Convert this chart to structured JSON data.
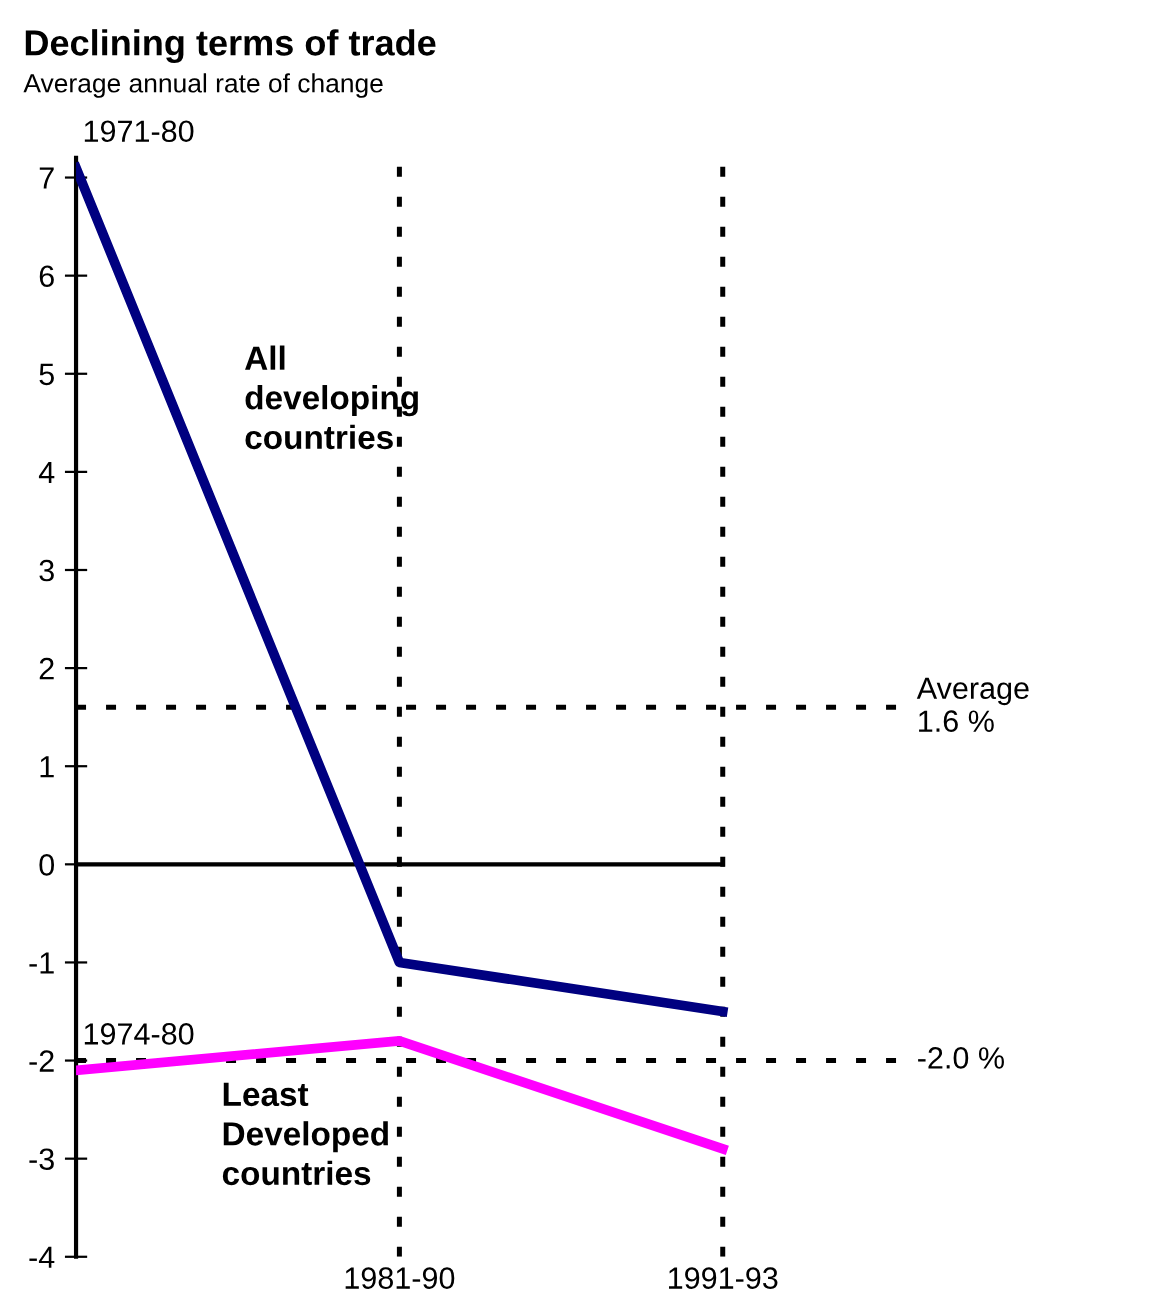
{
  "chart_data": {
    "type": "line",
    "title": "Declining terms of trade",
    "subtitle": "Average annual rate of change",
    "categories": [
      null,
      "1981-90",
      "1991-93"
    ],
    "series": [
      {
        "name": "All\ndeveloping\ncountries",
        "color": "#000080",
        "values": [
          7.1,
          -1.0,
          -1.5
        ]
      },
      {
        "name": "Least\nDeveloped\ncountries",
        "color": "#ff00ff",
        "values": [
          -2.1,
          -1.8,
          -2.9
        ]
      }
    ],
    "ylim": [
      -4,
      7.2
    ],
    "yticks": [
      -4,
      -3,
      -2,
      -1,
      0,
      1,
      2,
      3,
      4,
      5,
      6,
      7
    ],
    "ref_lines": [
      {
        "axis": "y",
        "value": 0,
        "color": "#000000",
        "line_style": "solid"
      },
      {
        "axis": "y",
        "value": 1.6,
        "label": "Average\n1.6 %",
        "color": "#000000",
        "line_style": "dotted"
      },
      {
        "axis": "y",
        "value": -2.0,
        "label": "-2.0 %",
        "color": "#000000",
        "line_style": "dotted"
      },
      {
        "axis": "x",
        "value": "1981-90",
        "color": "#000000",
        "line_style": "dotted"
      },
      {
        "axis": "x",
        "value": "1991-93",
        "color": "#000000",
        "line_style": "dotted"
      }
    ],
    "annotations": [
      "1971-80",
      "1974-80"
    ],
    "grid": false,
    "legend": false,
    "marker": "none",
    "line_style": "solid"
  }
}
